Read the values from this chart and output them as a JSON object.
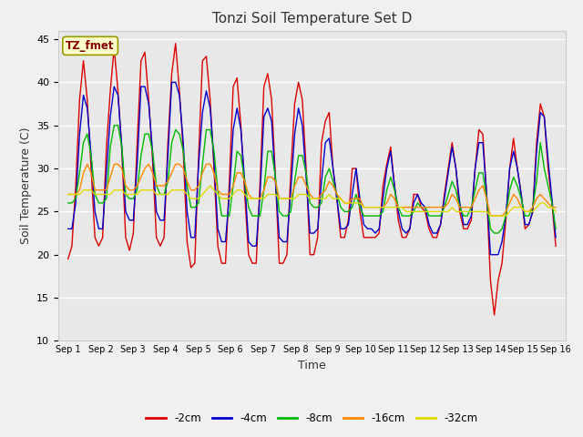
{
  "title": "Tonzi Soil Temperature Set D",
  "xlabel": "Time",
  "ylabel": "Soil Temperature (C)",
  "ylim": [
    10,
    46
  ],
  "yticks": [
    10,
    15,
    20,
    25,
    30,
    35,
    40,
    45
  ],
  "legend_label": "TZ_fmet",
  "fig_facecolor": "#f0f0f0",
  "ax_facecolor": "#e8e8e8",
  "line_colors": {
    "-2cm": "#dd0000",
    "-4cm": "#0000cc",
    "-8cm": "#00bb00",
    "-16cm": "#ff8800",
    "-32cm": "#dddd00"
  },
  "x_tick_labels": [
    "Sep 1",
    "Sep 2",
    "Sep 3",
    "Sep 4",
    "Sep 5",
    "Sep 6",
    "Sep 7",
    "Sep 8",
    "Sep 9",
    "Sep 10",
    "Sep 11",
    "Sep 12",
    "Sep 13",
    "Sep 14",
    "Sep 15",
    "Sep 16"
  ],
  "num_days": 16,
  "points_per_day": 8,
  "series": {
    "-2cm": [
      19.5,
      21.0,
      28.0,
      38.0,
      42.5,
      38.0,
      30.0,
      22.0,
      21.0,
      22.0,
      32.5,
      39.0,
      44.0,
      39.0,
      32.0,
      22.0,
      20.5,
      22.5,
      33.0,
      42.5,
      43.5,
      38.0,
      31.0,
      22.0,
      21.0,
      22.0,
      33.0,
      41.0,
      44.5,
      39.0,
      32.0,
      21.5,
      18.5,
      19.0,
      31.5,
      42.5,
      43.0,
      38.0,
      30.0,
      21.0,
      19.0,
      19.0,
      28.5,
      39.5,
      40.5,
      35.0,
      27.0,
      20.0,
      19.0,
      19.0,
      28.5,
      39.5,
      41.0,
      38.0,
      29.0,
      19.0,
      19.0,
      20.0,
      29.5,
      37.5,
      40.0,
      38.0,
      30.0,
      20.0,
      20.0,
      22.0,
      33.0,
      35.5,
      36.5,
      30.0,
      26.5,
      22.0,
      22.0,
      24.0,
      30.0,
      30.0,
      25.0,
      22.0,
      22.0,
      22.0,
      22.0,
      22.5,
      28.0,
      30.5,
      32.5,
      28.0,
      24.0,
      22.0,
      22.0,
      23.0,
      27.0,
      27.0,
      25.5,
      25.0,
      23.0,
      22.0,
      22.0,
      23.5,
      27.0,
      30.0,
      33.0,
      30.0,
      25.0,
      23.0,
      23.0,
      24.0,
      30.0,
      34.5,
      34.0,
      27.0,
      17.0,
      13.0,
      17.0,
      19.0,
      24.0,
      30.0,
      33.5,
      30.0,
      27.0,
      23.0,
      23.5,
      25.0,
      33.0,
      37.5,
      36.0,
      30.0,
      26.0,
      21.0
    ],
    "-4cm": [
      23.0,
      23.0,
      26.0,
      34.0,
      38.5,
      37.0,
      31.5,
      25.0,
      23.0,
      23.0,
      29.5,
      36.0,
      39.5,
      38.5,
      32.5,
      25.0,
      24.0,
      24.0,
      30.5,
      39.5,
      39.5,
      37.5,
      32.0,
      25.0,
      24.0,
      24.0,
      31.5,
      40.0,
      40.0,
      38.5,
      33.0,
      25.0,
      22.0,
      22.0,
      30.5,
      36.5,
      39.0,
      37.0,
      31.0,
      23.0,
      21.5,
      21.5,
      27.0,
      34.5,
      37.0,
      34.5,
      28.5,
      21.5,
      21.0,
      21.0,
      27.0,
      36.0,
      37.0,
      35.5,
      28.5,
      22.0,
      21.5,
      21.5,
      27.5,
      34.0,
      37.0,
      35.0,
      29.0,
      22.5,
      22.5,
      23.0,
      28.5,
      33.0,
      33.5,
      30.0,
      26.5,
      23.0,
      23.0,
      23.5,
      27.0,
      30.0,
      26.5,
      23.5,
      23.0,
      23.0,
      22.5,
      23.0,
      26.5,
      30.0,
      32.0,
      28.0,
      25.0,
      23.0,
      22.5,
      23.0,
      26.0,
      27.0,
      26.0,
      25.5,
      23.5,
      22.5,
      22.5,
      23.5,
      26.5,
      29.5,
      32.5,
      30.0,
      26.0,
      23.5,
      23.5,
      24.5,
      30.0,
      33.0,
      33.0,
      27.0,
      20.0,
      20.0,
      20.0,
      21.5,
      24.5,
      30.0,
      32.0,
      30.0,
      27.0,
      23.5,
      23.5,
      25.0,
      32.0,
      36.5,
      36.0,
      31.0,
      26.5,
      22.0
    ],
    "-8cm": [
      26.0,
      26.0,
      26.5,
      29.5,
      33.0,
      34.0,
      31.5,
      27.0,
      26.0,
      26.0,
      26.5,
      32.5,
      35.0,
      35.0,
      32.5,
      27.0,
      26.5,
      26.5,
      27.5,
      31.5,
      34.0,
      34.0,
      32.0,
      28.0,
      27.0,
      27.0,
      28.5,
      33.0,
      34.5,
      34.0,
      32.0,
      28.0,
      25.5,
      25.5,
      26.0,
      30.5,
      34.5,
      34.5,
      32.0,
      27.5,
      24.5,
      24.5,
      24.5,
      28.0,
      32.0,
      31.5,
      28.5,
      25.5,
      24.5,
      24.5,
      24.5,
      27.5,
      32.0,
      32.0,
      29.0,
      25.0,
      24.5,
      24.5,
      25.0,
      28.5,
      31.5,
      31.5,
      29.5,
      26.0,
      25.5,
      25.5,
      26.0,
      29.0,
      30.0,
      28.5,
      27.0,
      25.5,
      25.0,
      25.0,
      25.5,
      27.0,
      25.5,
      24.5,
      24.5,
      24.5,
      24.5,
      24.5,
      25.0,
      27.5,
      29.0,
      27.5,
      25.5,
      24.5,
      24.5,
      24.5,
      25.0,
      26.0,
      25.5,
      25.5,
      24.5,
      24.5,
      24.5,
      24.5,
      25.5,
      27.0,
      28.5,
      27.5,
      25.5,
      24.5,
      24.5,
      25.5,
      27.5,
      29.5,
      29.5,
      26.5,
      23.0,
      22.5,
      22.5,
      23.0,
      24.5,
      27.5,
      29.0,
      28.0,
      26.5,
      24.5,
      24.5,
      25.5,
      28.5,
      33.0,
      30.0,
      28.0,
      26.0,
      23.0
    ],
    "-16cm": [
      27.0,
      27.0,
      27.0,
      27.5,
      29.5,
      30.5,
      29.5,
      27.5,
      27.5,
      27.5,
      27.5,
      29.0,
      30.5,
      30.5,
      30.0,
      28.0,
      27.5,
      27.5,
      28.0,
      29.0,
      30.0,
      30.5,
      29.5,
      28.0,
      28.0,
      28.0,
      28.5,
      29.5,
      30.5,
      30.5,
      30.0,
      28.5,
      27.5,
      27.5,
      28.0,
      29.5,
      30.5,
      30.5,
      29.5,
      27.5,
      27.0,
      27.0,
      27.0,
      28.0,
      29.5,
      29.5,
      28.5,
      27.0,
      26.5,
      26.5,
      26.5,
      27.5,
      29.0,
      29.0,
      28.5,
      26.5,
      26.5,
      26.5,
      26.5,
      28.0,
      29.0,
      29.0,
      28.0,
      27.0,
      26.5,
      26.5,
      27.0,
      27.5,
      28.5,
      28.0,
      27.0,
      26.5,
      26.0,
      26.0,
      26.5,
      26.5,
      26.5,
      25.5,
      25.5,
      25.5,
      25.5,
      25.5,
      25.5,
      26.0,
      27.0,
      26.5,
      25.5,
      25.5,
      25.5,
      25.5,
      25.5,
      25.5,
      25.5,
      25.5,
      25.5,
      25.5,
      25.5,
      25.5,
      25.5,
      26.0,
      27.0,
      26.5,
      25.5,
      25.5,
      25.5,
      25.5,
      26.5,
      27.5,
      28.0,
      26.5,
      24.5,
      24.5,
      24.5,
      24.5,
      25.0,
      26.0,
      27.0,
      26.5,
      25.5,
      25.0,
      25.0,
      25.5,
      26.5,
      27.0,
      26.5,
      26.0,
      25.5,
      25.5
    ],
    "-32cm": [
      27.0,
      27.0,
      27.0,
      27.0,
      27.5,
      27.5,
      27.5,
      27.0,
      27.0,
      27.0,
      27.0,
      27.0,
      27.5,
      27.5,
      27.5,
      27.0,
      27.0,
      27.0,
      27.0,
      27.5,
      27.5,
      27.5,
      27.5,
      27.0,
      27.0,
      27.0,
      27.0,
      27.5,
      27.5,
      27.5,
      27.5,
      27.0,
      26.5,
      26.5,
      26.5,
      27.0,
      27.5,
      28.0,
      27.5,
      27.0,
      26.5,
      26.5,
      26.5,
      27.0,
      27.5,
      27.5,
      27.0,
      26.5,
      26.5,
      26.5,
      26.5,
      26.5,
      27.0,
      27.0,
      27.0,
      26.5,
      26.5,
      26.5,
      26.5,
      26.5,
      27.0,
      27.0,
      27.0,
      26.5,
      26.5,
      26.5,
      26.5,
      26.5,
      27.0,
      26.5,
      26.5,
      26.5,
      26.0,
      26.0,
      26.0,
      26.0,
      26.0,
      25.5,
      25.5,
      25.5,
      25.5,
      25.5,
      25.5,
      25.5,
      25.5,
      25.5,
      25.5,
      25.5,
      25.0,
      25.0,
      25.0,
      25.0,
      25.0,
      25.0,
      25.0,
      25.0,
      25.0,
      25.0,
      25.0,
      25.0,
      25.5,
      25.0,
      25.0,
      25.0,
      25.0,
      25.0,
      25.0,
      25.0,
      25.0,
      25.0,
      24.5,
      24.5,
      24.5,
      24.5,
      24.5,
      25.0,
      25.5,
      25.5,
      25.5,
      25.0,
      25.0,
      25.0,
      25.5,
      26.0,
      26.0,
      25.5,
      25.5,
      25.0
    ]
  }
}
